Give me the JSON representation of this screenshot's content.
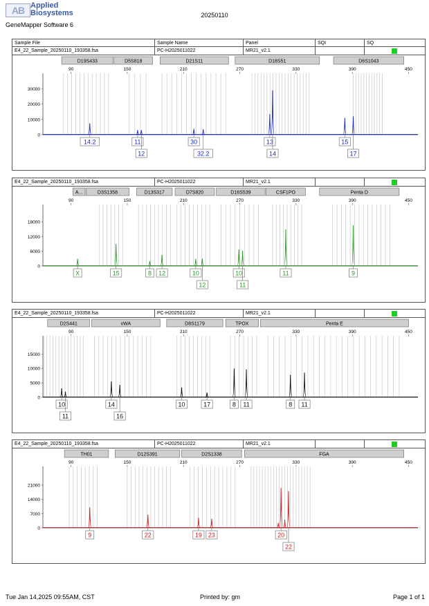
{
  "brand": {
    "mark": "AB",
    "name": "Applied Biosystems",
    "software": "GeneMapper Software 6"
  },
  "run_date": "20250110",
  "header": {
    "col1": "Sample File",
    "col2": "Sample Name",
    "col3": "Panel",
    "col4": "SQI",
    "col5": "SQ"
  },
  "colors": {
    "blue": "#1a2bc8",
    "green": "#2a9a2a",
    "black": "#111111",
    "red": "#cc2222",
    "ladder": "#c8c8c8",
    "status": "#22cc22"
  },
  "chart_data": [
    {
      "type": "line",
      "title": "",
      "xlabel": "",
      "ylabel": "",
      "sample_file": "E4_22_Sample_20250110_193358.fsa",
      "sample_name": "PC-H2025011022",
      "panel": "MR21_v2.1",
      "color": "#1a2bc8",
      "xlim": [
        60,
        460
      ],
      "x_ticks": [
        90,
        150,
        210,
        270,
        330,
        390,
        450
      ],
      "ylim": [
        0,
        32000
      ],
      "y_ticks": [
        0,
        10000,
        20000,
        30000
      ],
      "markers": [
        {
          "label": "D19S433",
          "start": 80,
          "end": 135
        },
        {
          "label": "D5S818",
          "start": 136,
          "end": 177
        },
        {
          "label": "D21S11",
          "start": 185,
          "end": 258
        },
        {
          "label": "D18S51",
          "start": 265,
          "end": 355
        },
        {
          "label": "D6S1043",
          "start": 370,
          "end": 445
        }
      ],
      "ladder_bins": [
        [
          82,
          130,
          12
        ],
        [
          152,
          170,
          4
        ],
        [
          187,
          255,
          14
        ],
        [
          283,
          344,
          20
        ],
        [
          391,
          422,
          12
        ]
      ],
      "peaks": [
        {
          "x": 110,
          "y": 7500
        },
        {
          "x": 161,
          "y": 3100
        },
        {
          "x": 165,
          "y": 3000
        },
        {
          "x": 221,
          "y": 3800
        },
        {
          "x": 231,
          "y": 3600
        },
        {
          "x": 302,
          "y": 13500
        },
        {
          "x": 305,
          "y": 29000
        },
        {
          "x": 382,
          "y": 11000
        },
        {
          "x": 391,
          "y": 12000
        }
      ],
      "alleles": [
        {
          "x": 110,
          "label": "14.2",
          "row": 0
        },
        {
          "x": 161,
          "label": "11",
          "row": 0
        },
        {
          "x": 165,
          "label": "12",
          "row": 1
        },
        {
          "x": 221,
          "label": "30",
          "row": 0
        },
        {
          "x": 231,
          "label": "32.2",
          "row": 1
        },
        {
          "x": 302,
          "label": "13",
          "row": 0
        },
        {
          "x": 305,
          "label": "14",
          "row": 1
        },
        {
          "x": 382,
          "label": "15",
          "row": 0
        },
        {
          "x": 391,
          "label": "17",
          "row": 1
        }
      ]
    },
    {
      "type": "line",
      "title": "",
      "xlabel": "",
      "ylabel": "",
      "sample_file": "E4_22_Sample_20250110_193358.fsa",
      "sample_name": "PC-H2025011022",
      "panel": "MR21_v2.1",
      "color": "#2a9a2a",
      "xlim": [
        60,
        460
      ],
      "x_ticks": [
        90,
        150,
        210,
        270,
        330,
        390,
        450
      ],
      "ylim": [
        0,
        20000
      ],
      "y_ticks": [
        0,
        6000,
        12000,
        18000
      ],
      "markers": [
        {
          "label": "A...",
          "start": 92,
          "end": 105
        },
        {
          "label": "D3S1358",
          "start": 106,
          "end": 152
        },
        {
          "label": "D13S317",
          "start": 160,
          "end": 198
        },
        {
          "label": "D7S820",
          "start": 201,
          "end": 243
        },
        {
          "label": "D16S539",
          "start": 245,
          "end": 297
        },
        {
          "label": "CSF1PO",
          "start": 298,
          "end": 340
        },
        {
          "label": "Penta D",
          "start": 355,
          "end": 440
        }
      ],
      "ladder_bins": [
        [
          120,
          145,
          7
        ],
        [
          162,
          196,
          9
        ],
        [
          203,
          238,
          9
        ],
        [
          250,
          290,
          9
        ],
        [
          305,
          336,
          9
        ],
        [
          369,
          430,
          14
        ]
      ],
      "peaks": [
        {
          "x": 97,
          "y": 3000
        },
        {
          "x": 138,
          "y": 9000
        },
        {
          "x": 174,
          "y": 2000
        },
        {
          "x": 187,
          "y": 4500
        },
        {
          "x": 223,
          "y": 3000
        },
        {
          "x": 230,
          "y": 3000
        },
        {
          "x": 269,
          "y": 6800
        },
        {
          "x": 273,
          "y": 6200
        },
        {
          "x": 319,
          "y": 15000
        },
        {
          "x": 391,
          "y": 16500
        }
      ],
      "alleles": [
        {
          "x": 97,
          "label": "X",
          "row": 0
        },
        {
          "x": 138,
          "label": "15",
          "row": 0
        },
        {
          "x": 174,
          "label": "8",
          "row": 0
        },
        {
          "x": 187,
          "label": "12",
          "row": 0
        },
        {
          "x": 223,
          "label": "10",
          "row": 0
        },
        {
          "x": 230,
          "label": "12",
          "row": 1
        },
        {
          "x": 269,
          "label": "10",
          "row": 0
        },
        {
          "x": 273,
          "label": "11",
          "row": 1
        },
        {
          "x": 319,
          "label": "11",
          "row": 0
        },
        {
          "x": 391,
          "label": "9",
          "row": 0
        }
      ]
    },
    {
      "type": "line",
      "title": "",
      "xlabel": "",
      "ylabel": "",
      "sample_file": "E4_22_Sample_20250110_193358.fsa",
      "sample_name": "PC-H2025011022",
      "panel": "MR21_v2.1",
      "color": "#111111",
      "xlim": [
        60,
        460
      ],
      "x_ticks": [
        90,
        150,
        210,
        270,
        330,
        390,
        450
      ],
      "ylim": [
        0,
        17000
      ],
      "y_ticks": [
        0,
        5000,
        10000,
        15000
      ],
      "markers": [
        {
          "label": "D2S441",
          "start": 65,
          "end": 110
        },
        {
          "label": "vWA",
          "start": 112,
          "end": 185
        },
        {
          "label": "D8S1179",
          "start": 192,
          "end": 252
        },
        {
          "label": "TPOX",
          "start": 255,
          "end": 290
        },
        {
          "label": "Penta E",
          "start": 292,
          "end": 450
        }
      ],
      "ladder_bins": [
        [
          61,
          103,
          14
        ],
        [
          115,
          175,
          14
        ],
        [
          203,
          238,
          9
        ],
        [
          260,
          288,
          7
        ],
        [
          300,
          440,
          24
        ]
      ],
      "peaks": [
        {
          "x": 80,
          "y": 3100
        },
        {
          "x": 84,
          "y": 2000
        },
        {
          "x": 133,
          "y": 5500
        },
        {
          "x": 142,
          "y": 4300
        },
        {
          "x": 208,
          "y": 3400
        },
        {
          "x": 235,
          "y": 1700
        },
        {
          "x": 264,
          "y": 10000
        },
        {
          "x": 277,
          "y": 9700
        },
        {
          "x": 324,
          "y": 7800
        },
        {
          "x": 339,
          "y": 8600
        }
      ],
      "alleles": [
        {
          "x": 80,
          "label": "10",
          "row": 0
        },
        {
          "x": 84,
          "label": "11",
          "row": 1
        },
        {
          "x": 133,
          "label": "14",
          "row": 0
        },
        {
          "x": 142,
          "label": "16",
          "row": 1
        },
        {
          "x": 208,
          "label": "10",
          "row": 0
        },
        {
          "x": 235,
          "label": "17",
          "row": 0
        },
        {
          "x": 264,
          "label": "8",
          "row": 0
        },
        {
          "x": 277,
          "label": "11",
          "row": 0
        },
        {
          "x": 324,
          "label": "8",
          "row": 0
        },
        {
          "x": 339,
          "label": "11",
          "row": 0
        }
      ]
    },
    {
      "type": "line",
      "title": "",
      "xlabel": "",
      "ylabel": "",
      "sample_file": "E4_22_Sample_20250110_193358.fsa",
      "sample_name": "PC-H2025011022",
      "panel": "MR21_v2.1",
      "color": "#cc2222",
      "xlim": [
        60,
        460
      ],
      "x_ticks": [
        90,
        150,
        210,
        270,
        330,
        390,
        450
      ],
      "ylim": [
        0,
        24000
      ],
      "y_ticks": [
        0,
        7000,
        14000,
        21000
      ],
      "markers": [
        {
          "label": "TH01",
          "start": 83,
          "end": 130
        },
        {
          "label": "D12S391",
          "start": 137,
          "end": 206
        },
        {
          "label": "D2S1338",
          "start": 208,
          "end": 272
        },
        {
          "label": "FGA",
          "start": 275,
          "end": 445
        }
      ],
      "ladder_bins": [
        [
          88,
          118,
          8
        ],
        [
          150,
          196,
          12
        ],
        [
          217,
          265,
          12
        ],
        [
          282,
          345,
          22
        ]
      ],
      "peaks": [
        {
          "x": 110,
          "y": 10000
        },
        {
          "x": 172,
          "y": 6500
        },
        {
          "x": 226,
          "y": 5000
        },
        {
          "x": 240,
          "y": 4500
        },
        {
          "x": 311,
          "y": 2500
        },
        {
          "x": 314,
          "y": 19500
        },
        {
          "x": 318,
          "y": 4000
        },
        {
          "x": 322,
          "y": 18000
        }
      ],
      "alleles": [
        {
          "x": 110,
          "label": "9",
          "row": 0
        },
        {
          "x": 172,
          "label": "22",
          "row": 0
        },
        {
          "x": 226,
          "label": "19",
          "row": 0
        },
        {
          "x": 240,
          "label": "23",
          "row": 0
        },
        {
          "x": 314,
          "label": "20",
          "row": 0
        },
        {
          "x": 322,
          "label": "22",
          "row": 1
        }
      ]
    }
  ],
  "footer": {
    "timestamp": "Tue Jan 14,2025 09:55AM, CST",
    "printed_by": "Printed by: gm",
    "page": "Page 1 of 1"
  }
}
